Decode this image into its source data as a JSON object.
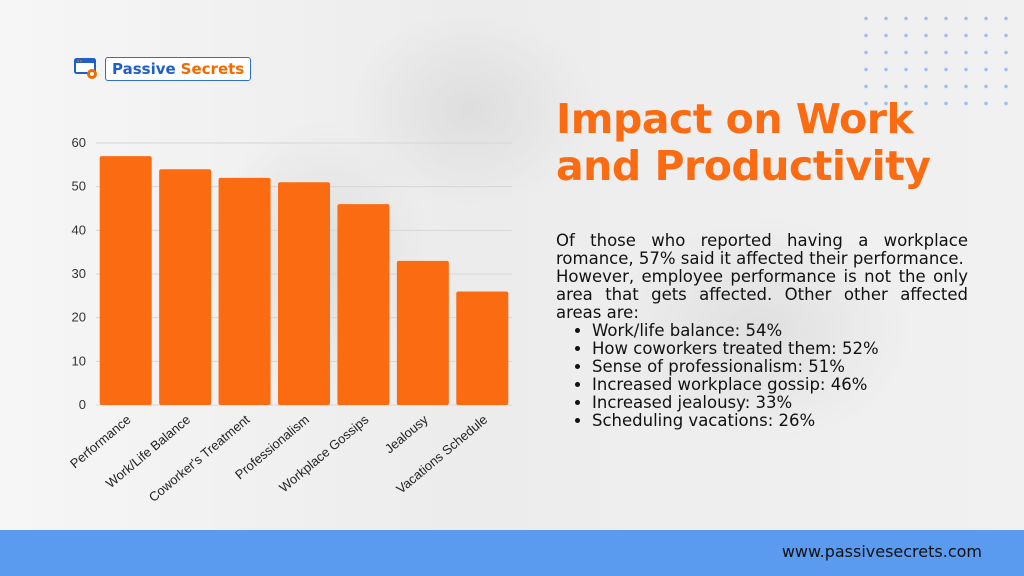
{
  "logo": {
    "word1": "Passive",
    "word2": "Secrets"
  },
  "title": {
    "line1": "Impact on Work",
    "line2": "and Productivity"
  },
  "body": {
    "para1": "Of those who reported having a workplace romance, 57% said it affected their performance.",
    "para2": "However, employee performance is not the only area that gets affected. Other other affected areas are:",
    "bullets": [
      "Work/life balance: 54%",
      "How coworkers treated them: 52%",
      "Sense of professionalism: 51%",
      "Increased workplace gossip: 46%",
      "Increased jealousy: 33%",
      "Scheduling vacations: 26%"
    ]
  },
  "footer": {
    "url": "www.passivesecrets.com"
  },
  "colors": {
    "accent": "#fb6b12",
    "bar": "#fb6b12",
    "footer": "#5a9aef",
    "brand_blue": "#1f5fc9"
  },
  "chart_data": {
    "type": "bar",
    "title": "",
    "xlabel": "",
    "ylabel": "",
    "categories": [
      "Performance",
      "Work/Life Balance",
      "Coworker's Treatment",
      "Professionalism",
      "Workplace Gossips",
      "Jealousy",
      "Vacations Schedule"
    ],
    "values": [
      57,
      54,
      52,
      51,
      46,
      33,
      26
    ],
    "ylim": [
      0,
      60
    ],
    "yticks": [
      0,
      10,
      20,
      30,
      40,
      50,
      60
    ],
    "grid": true,
    "legend": "none"
  }
}
